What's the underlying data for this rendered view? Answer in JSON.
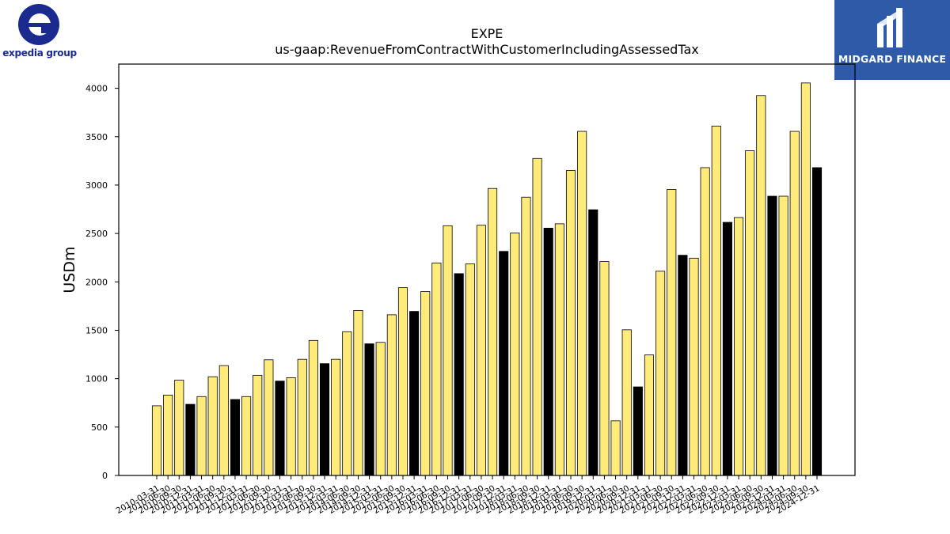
{
  "brand_left": {
    "text": "expedia group",
    "color": "#1a2a8e"
  },
  "brand_right": {
    "text": "MIDGARD FINANCE",
    "color": "#2f5aa8"
  },
  "chart_data": {
    "type": "bar",
    "title": "EXPE",
    "subtitle": "us-gaap:RevenueFromContractWithCustomerIncludingAssessedTax",
    "xlabel": "",
    "ylabel": "USDm",
    "ylim": [
      0,
      4250
    ],
    "yticks": [
      0,
      500,
      1000,
      1500,
      2000,
      2500,
      3000,
      3500,
      4000
    ],
    "grid": false,
    "colors": {
      "quarter": "#ffeb7a",
      "annual": "#000000",
      "edge": "#000000"
    },
    "x_first_label": "2010-03-31",
    "x_last_label": "2024-12-31",
    "categories": [
      "2010-03-31",
      "2010-06-30",
      "2010-09-30",
      "2010-12-31",
      "2011-03-31",
      "2011-06-30",
      "2011-09-30",
      "2011-12-31",
      "2012-03-31",
      "2012-06-30",
      "2012-09-30",
      "2012-12-31",
      "2013-03-31",
      "2013-06-30",
      "2013-09-30",
      "2013-12-31",
      "2014-03-31",
      "2014-06-30",
      "2014-09-30",
      "2014-12-31",
      "2015-03-31",
      "2015-06-30",
      "2015-09-30",
      "2015-12-31",
      "2016-03-31",
      "2016-06-30",
      "2016-09-30",
      "2016-12-31",
      "2017-03-31",
      "2017-06-30",
      "2017-09-30",
      "2017-12-31",
      "2018-03-31",
      "2018-06-30",
      "2018-09-30",
      "2018-12-31",
      "2019-03-31",
      "2019-06-30",
      "2019-09-30",
      "2019-12-31",
      "2020-03-31",
      "2020-06-30",
      "2020-09-30",
      "2020-12-31",
      "2021-03-31",
      "2021-06-30",
      "2021-09-30",
      "2021-12-31",
      "2022-03-31",
      "2022-06-30",
      "2022-09-30",
      "2022-12-31",
      "2023-03-31",
      "2023-06-30",
      "2023-09-30",
      "2023-12-31",
      "2024-03-31",
      "2024-06-30",
      "2024-09-30",
      "2024-12-31"
    ],
    "values": [
      720,
      830,
      985,
      735,
      815,
      1020,
      1135,
      785,
      815,
      1035,
      1195,
      975,
      1010,
      1200,
      1395,
      1155,
      1200,
      1485,
      1705,
      1360,
      1375,
      1660,
      1940,
      1695,
      1900,
      2195,
      2580,
      2085,
      2185,
      2585,
      2965,
      2315,
      2505,
      2875,
      3275,
      2555,
      2600,
      3150,
      3555,
      2745,
      2210,
      565,
      1505,
      915,
      1245,
      2110,
      2955,
      2275,
      2245,
      3180,
      3610,
      2615,
      2665,
      3355,
      3925,
      2885,
      2885,
      3555,
      4055,
      3180
    ],
    "annual_indices": [
      3,
      7,
      11,
      15,
      19,
      23,
      27,
      31,
      35,
      39,
      43,
      47,
      51,
      55,
      59
    ]
  }
}
